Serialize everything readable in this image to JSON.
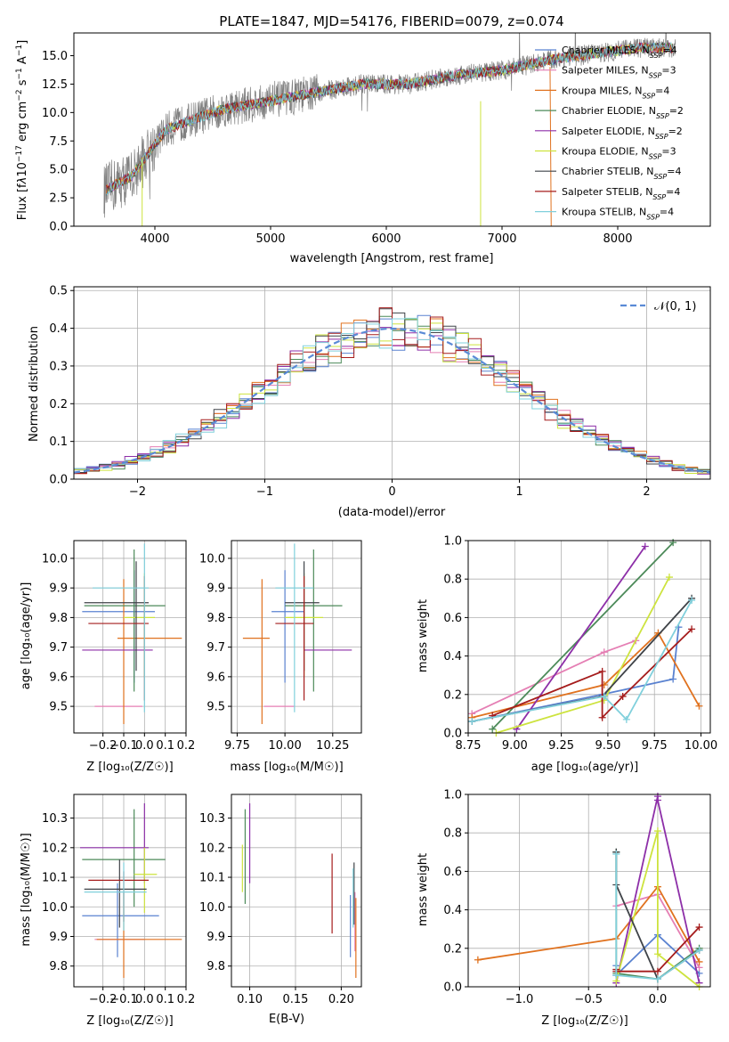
{
  "chart_data": [
    {
      "type": "line",
      "title": "PLATE=1847, MJD=54176, FIBERID=0079, z=0.074",
      "xlabel": "wavelength [Angstrom, rest frame]",
      "ylabel": "Flux [f_λ10^{-17} erg cm^{-2} s^{-1} A^{-1}]",
      "xlim": [
        3300,
        8800
      ],
      "ylim": [
        0,
        17
      ],
      "xticks": [
        4000,
        5000,
        6000,
        7000,
        8000
      ],
      "yticks": [
        0.0,
        2.5,
        5.0,
        7.5,
        10.0,
        12.5,
        15.0
      ],
      "xtick_labels": [
        "4000",
        "5000",
        "6000",
        "7000",
        "8000"
      ],
      "ytick_labels": [
        "0.0",
        "2.5",
        "5.0",
        "7.5",
        "10.0",
        "12.5",
        "15.0"
      ],
      "grid": false,
      "legend_position": "top-right",
      "data_color": "#808080",
      "continuum": {
        "x": [
          3550,
          3650,
          3800,
          3950,
          4100,
          4300,
          4600,
          5000,
          5400,
          5800,
          6200,
          6600,
          7000,
          7400,
          7800,
          8200,
          8500
        ],
        "y": [
          3.0,
          3.6,
          4.4,
          6.5,
          8.5,
          9.3,
          10.3,
          11.0,
          11.8,
          12.5,
          12.5,
          13.3,
          13.7,
          14.6,
          15.2,
          15.7,
          15.7
        ]
      },
      "series": [
        {
          "name": "Chabrier MILES",
          "nssp": "4",
          "color": "#5a82d0"
        },
        {
          "name": "Salpeter MILES",
          "nssp": "3",
          "color": "#e57fb4"
        },
        {
          "name": "Kroupa MILES",
          "nssp": "4",
          "color": "#e0721f"
        },
        {
          "name": "Chabrier ELODIE",
          "nssp": "2",
          "color": "#4c8a59"
        },
        {
          "name": "Salpeter ELODIE",
          "nssp": "2",
          "color": "#8d2fa8"
        },
        {
          "name": "Kroupa ELODIE",
          "nssp": "3",
          "color": "#cde33e"
        },
        {
          "name": "Chabrier STELIB",
          "nssp": "4",
          "color": "#3f4348"
        },
        {
          "name": "Salpeter STELIB",
          "nssp": "4",
          "color": "#a51c1c"
        },
        {
          "name": "Kroupa STELIB",
          "nssp": "4",
          "color": "#80d0dc"
        }
      ]
    },
    {
      "type": "line",
      "xlabel": "(data-model)/error",
      "ylabel": "Normed distribution",
      "xlim": [
        -2.5,
        2.5
      ],
      "ylim": [
        0,
        0.51
      ],
      "xticks": [
        -2,
        -1,
        0,
        1,
        2
      ],
      "yticks": [
        0.0,
        0.1,
        0.2,
        0.3,
        0.4,
        0.5
      ],
      "xtick_labels": [
        "−2",
        "−1",
        "0",
        "1",
        "2"
      ],
      "ytick_labels": [
        "0.0",
        "0.1",
        "0.2",
        "0.3",
        "0.4",
        "0.5"
      ],
      "grid": true,
      "legend": "𝒩(0, 1)",
      "legend_position": "top-right",
      "normal_color": "#5a8ad6",
      "bin_width": 0.1
    },
    {
      "type": "scatter",
      "xlabel": "Z [log₁₀(Z/Z☉)]",
      "ylabel": "age  [log₁₀(age/yr)]",
      "xlim": [
        -0.34,
        0.2
      ],
      "ylim": [
        9.41,
        10.06
      ],
      "xticks": [
        -0.2,
        -0.1,
        0.0,
        0.1,
        0.2
      ],
      "yticks": [
        9.5,
        9.6,
        9.7,
        9.8,
        9.9,
        10.0
      ],
      "xtick_labels": [
        "−0.2",
        "−0.1",
        "0.0",
        "0.1",
        "0.2"
      ],
      "ytick_labels": [
        "9.5",
        "9.6",
        "9.7",
        "9.8",
        "9.9",
        "10.0"
      ],
      "grid": true,
      "crosses": [
        {
          "s": 0,
          "x": -0.05,
          "y": 9.82,
          "xlo": -0.3,
          "xhi": 0.05,
          "ylo": 9.58,
          "yhi": 9.96
        },
        {
          "s": 1,
          "x": -0.12,
          "y": 9.5,
          "xlo": -0.24,
          "xhi": -0.01,
          "ylo": 9.5,
          "yhi": 9.5
        },
        {
          "s": 2,
          "x": -0.1,
          "y": 9.73,
          "xlo": -0.13,
          "xhi": 0.18,
          "ylo": 9.44,
          "yhi": 9.93
        },
        {
          "s": 3,
          "x": -0.05,
          "y": 9.84,
          "xlo": -0.29,
          "xhi": 0.1,
          "ylo": 9.55,
          "yhi": 10.03
        },
        {
          "s": 4,
          "x": -0.1,
          "y": 9.69,
          "xlo": -0.3,
          "xhi": 0.04,
          "ylo": 9.69,
          "yhi": 9.69
        },
        {
          "s": 5,
          "x": 0.0,
          "y": 9.8,
          "xlo": -0.1,
          "xhi": 0.05,
          "ylo": 9.6,
          "yhi": 9.95
        },
        {
          "s": 6,
          "x": -0.04,
          "y": 9.85,
          "xlo": -0.29,
          "xhi": 0.02,
          "ylo": 9.62,
          "yhi": 9.99
        },
        {
          "s": 7,
          "x": 0.0,
          "y": 9.78,
          "xlo": -0.27,
          "xhi": 0.02,
          "ylo": 9.52,
          "yhi": 9.94
        },
        {
          "s": 8,
          "x": 0.0,
          "y": 9.9,
          "xlo": -0.25,
          "xhi": 0.02,
          "ylo": 9.48,
          "yhi": 10.05
        }
      ]
    },
    {
      "type": "scatter",
      "xlabel": "mass [log₁₀(M/M☉)]",
      "xlim": [
        9.72,
        10.4
      ],
      "ylim": [
        9.41,
        10.06
      ],
      "xticks": [
        9.75,
        10.0,
        10.25
      ],
      "yticks": [
        9.5,
        9.6,
        9.7,
        9.8,
        9.9,
        10.0
      ],
      "xtick_labels": [
        "9.75",
        "10.00",
        "10.25"
      ],
      "ytick_labels": [
        "9.5",
        "9.6",
        "9.7",
        "9.8",
        "9.9",
        "10.0"
      ],
      "grid": true,
      "crosses": [
        {
          "s": 0,
          "x": 10.0,
          "y": 9.82,
          "xlo": 9.93,
          "xhi": 10.1,
          "ylo": 9.58,
          "yhi": 9.96
        },
        {
          "s": 1,
          "x": 9.95,
          "y": 9.5,
          "xlo": 9.89,
          "xhi": 10.05,
          "ylo": 9.5,
          "yhi": 9.5
        },
        {
          "s": 2,
          "x": 9.88,
          "y": 9.73,
          "xlo": 9.78,
          "xhi": 9.92,
          "ylo": 9.44,
          "yhi": 9.93
        },
        {
          "s": 3,
          "x": 10.15,
          "y": 9.84,
          "xlo": 10.0,
          "xhi": 10.3,
          "ylo": 9.55,
          "yhi": 10.03
        },
        {
          "s": 4,
          "x": 10.2,
          "y": 9.69,
          "xlo": 10.1,
          "xhi": 10.35,
          "ylo": 9.69,
          "yhi": 9.69
        },
        {
          "s": 5,
          "x": 10.1,
          "y": 9.8,
          "xlo": 10.0,
          "xhi": 10.2,
          "ylo": 9.6,
          "yhi": 9.95
        },
        {
          "s": 6,
          "x": 10.1,
          "y": 9.85,
          "xlo": 10.0,
          "xhi": 10.18,
          "ylo": 9.62,
          "yhi": 9.99
        },
        {
          "s": 7,
          "x": 10.1,
          "y": 9.78,
          "xlo": 9.95,
          "xhi": 10.15,
          "ylo": 9.52,
          "yhi": 9.94
        },
        {
          "s": 8,
          "x": 10.05,
          "y": 9.9,
          "xlo": 9.95,
          "xhi": 10.15,
          "ylo": 9.48,
          "yhi": 10.05
        }
      ]
    },
    {
      "type": "line",
      "xlabel": "age  [log₁₀(age/yr)]",
      "ylabel": "mass weight",
      "xlim": [
        8.75,
        10.05
      ],
      "ylim": [
        0,
        1
      ],
      "xticks": [
        8.75,
        9.0,
        9.25,
        9.5,
        9.75,
        10.0
      ],
      "yticks": [
        0.0,
        0.2,
        0.4,
        0.6,
        0.8,
        1.0
      ],
      "xtick_labels": [
        "8.75",
        "9.00",
        "9.25",
        "9.50",
        "9.75",
        "10.00"
      ],
      "ytick_labels": [
        "0.0",
        "0.2",
        "0.4",
        "0.6",
        "0.8",
        "1.0"
      ],
      "grid": true,
      "lines": [
        {
          "s": 0,
          "x": [
            8.77,
            9.47,
            9.85,
            9.88
          ],
          "y": [
            0.06,
            0.2,
            0.28,
            0.55
          ]
        },
        {
          "s": 1,
          "x": [
            8.77,
            9.48,
            9.65
          ],
          "y": [
            0.1,
            0.42,
            0.48
          ]
        },
        {
          "s": 2,
          "x": [
            8.77,
            9.48,
            9.77,
            9.99
          ],
          "y": [
            0.08,
            0.25,
            0.52,
            0.14
          ]
        },
        {
          "s": 3,
          "x": [
            8.88,
            9.85
          ],
          "y": [
            0.02,
            0.99
          ]
        },
        {
          "s": 4,
          "x": [
            9.01,
            9.7
          ],
          "y": [
            0.02,
            0.97
          ]
        },
        {
          "s": 5,
          "x": [
            8.9,
            9.48,
            9.83
          ],
          "y": [
            0.0,
            0.17,
            0.81
          ]
        },
        {
          "s": 6,
          "x": [
            8.77,
            9.47,
            9.95
          ],
          "y": [
            0.06,
            0.19,
            0.7
          ]
        },
        {
          "s": 7,
          "x": [
            8.88,
            9.47,
            9.47,
            9.58,
            9.95
          ],
          "y": [
            0.09,
            0.32,
            0.08,
            0.19,
            0.54
          ]
        },
        {
          "s": 8,
          "x": [
            8.77,
            9.48,
            9.6,
            9.95
          ],
          "y": [
            0.06,
            0.19,
            0.07,
            0.69
          ]
        }
      ]
    },
    {
      "type": "scatter",
      "xlabel": "Z [log₁₀(Z/Z☉)]",
      "ylabel": "mass [log₁₀(M/M☉)]",
      "xlim": [
        -0.34,
        0.2
      ],
      "ylim": [
        9.73,
        10.38
      ],
      "xticks": [
        -0.2,
        -0.1,
        0.0,
        0.1,
        0.2
      ],
      "yticks": [
        9.8,
        9.9,
        10.0,
        10.1,
        10.2,
        10.3
      ],
      "xtick_labels": [
        "−0.2",
        "−0.1",
        "0.0",
        "0.1",
        "0.2"
      ],
      "ytick_labels": [
        "9.8",
        "9.9",
        "10.0",
        "10.1",
        "10.2",
        "10.3"
      ],
      "grid": true,
      "crosses": [
        {
          "s": 0,
          "x": -0.13,
          "y": 9.97,
          "xlo": -0.3,
          "xhi": 0.07,
          "ylo": 9.83,
          "yhi": 10.08
        },
        {
          "s": 1,
          "x": -0.05,
          "y": 9.89,
          "xlo": -0.24,
          "xhi": 0.0,
          "ylo": 9.89,
          "yhi": 9.89
        },
        {
          "s": 2,
          "x": -0.1,
          "y": 9.89,
          "xlo": -0.23,
          "xhi": 0.18,
          "ylo": 9.76,
          "yhi": 10.05
        },
        {
          "s": 3,
          "x": -0.05,
          "y": 10.16,
          "xlo": -0.3,
          "xhi": 0.1,
          "ylo": 10.0,
          "yhi": 10.33
        },
        {
          "s": 4,
          "x": 0.0,
          "y": 10.2,
          "xlo": -0.31,
          "xhi": 0.02,
          "ylo": 10.08,
          "yhi": 10.35
        },
        {
          "s": 5,
          "x": 0.0,
          "y": 10.11,
          "xlo": -0.05,
          "xhi": 0.06,
          "ylo": 9.98,
          "yhi": 10.2
        },
        {
          "s": 6,
          "x": -0.12,
          "y": 10.06,
          "xlo": -0.29,
          "xhi": 0.01,
          "ylo": 9.93,
          "yhi": 10.16
        },
        {
          "s": 7,
          "x": -0.1,
          "y": 10.09,
          "xlo": -0.27,
          "xhi": 0.02,
          "ylo": 9.95,
          "yhi": 10.12
        },
        {
          "s": 8,
          "x": -0.1,
          "y": 10.05,
          "xlo": -0.29,
          "xhi": 0.01,
          "ylo": 9.92,
          "yhi": 10.15
        }
      ]
    },
    {
      "type": "scatter",
      "xlabel": "E(B-V)",
      "xlim": [
        0.08,
        0.222
      ],
      "ylim": [
        9.73,
        10.38
      ],
      "xticks": [
        0.1,
        0.15,
        0.2
      ],
      "yticks": [
        9.8,
        9.9,
        10.0,
        10.1,
        10.2,
        10.3
      ],
      "xtick_labels": [
        "0.10",
        "0.15",
        "0.20"
      ],
      "ytick_labels": [
        "9.8",
        "9.9",
        "10.0",
        "10.1",
        "10.2",
        "10.3"
      ],
      "grid": true,
      "crosses": [
        {
          "s": 0,
          "x": 0.21,
          "y": 9.97,
          "ylo": 9.83,
          "yhi": 10.04
        },
        {
          "s": 1,
          "x": 0.215,
          "y": 9.95,
          "ylo": 9.85,
          "yhi": 10.05
        },
        {
          "s": 2,
          "x": 0.216,
          "y": 9.9,
          "ylo": 9.76,
          "yhi": 10.03
        },
        {
          "s": 3,
          "x": 0.095,
          "y": 10.17,
          "ylo": 10.01,
          "yhi": 10.33
        },
        {
          "s": 4,
          "x": 0.1,
          "y": 10.21,
          "ylo": 10.08,
          "yhi": 10.35
        },
        {
          "s": 5,
          "x": 0.092,
          "y": 10.13,
          "ylo": 10.05,
          "yhi": 10.21
        },
        {
          "s": 6,
          "x": 0.214,
          "y": 10.05,
          "ylo": 9.94,
          "yhi": 10.15
        },
        {
          "s": 7,
          "x": 0.19,
          "y": 10.05,
          "ylo": 9.91,
          "yhi": 10.18
        },
        {
          "s": 8,
          "x": 0.213,
          "y": 10.03,
          "ylo": 9.93,
          "yhi": 10.13
        }
      ]
    },
    {
      "type": "line",
      "xlabel": "Z [log₁₀(Z/Z☉)]",
      "ylabel": "mass weight",
      "xlim": [
        -1.37,
        0.38
      ],
      "ylim": [
        0,
        1
      ],
      "xticks": [
        -1.0,
        -0.5,
        0.0
      ],
      "yticks": [
        0.0,
        0.2,
        0.4,
        0.6,
        0.8,
        1.0
      ],
      "xtick_labels": [
        "−1.0",
        "−0.5",
        "0.0"
      ],
      "ytick_labels": [
        "0.0",
        "0.2",
        "0.4",
        "0.6",
        "0.8",
        "1.0"
      ],
      "grid": true,
      "lines": [
        {
          "s": 0,
          "x": [
            -0.3,
            -0.3,
            0.0,
            0.3
          ],
          "y": [
            0.11,
            0.06,
            0.27,
            0.07
          ]
        },
        {
          "s": 1,
          "x": [
            -0.3,
            0.0,
            0.3
          ],
          "y": [
            0.42,
            0.48,
            0.1
          ]
        },
        {
          "s": 2,
          "x": [
            -1.3,
            -0.3,
            0.0,
            0.3
          ],
          "y": [
            0.14,
            0.25,
            0.52,
            0.13
          ]
        },
        {
          "s": 3,
          "x": [
            -0.3,
            -0.3,
            0.0,
            0.3
          ],
          "y": [
            0.7,
            0.07,
            0.04,
            0.2
          ]
        },
        {
          "s": 4,
          "x": [
            -0.3,
            0.0,
            0.0,
            0.3
          ],
          "y": [
            0.02,
            0.99,
            0.97,
            0.02
          ]
        },
        {
          "s": 5,
          "x": [
            -0.3,
            0.0,
            0.0,
            0.3
          ],
          "y": [
            0.03,
            0.81,
            0.17,
            0.0
          ]
        },
        {
          "s": 6,
          "x": [
            -0.3,
            -0.3,
            0.0,
            0.3
          ],
          "y": [
            0.7,
            0.53,
            0.04,
            0.19
          ]
        },
        {
          "s": 7,
          "x": [
            -0.3,
            -0.3,
            0.0,
            0.3
          ],
          "y": [
            0.09,
            0.08,
            0.08,
            0.31
          ]
        },
        {
          "s": 8,
          "x": [
            -0.3,
            -0.3,
            0.0,
            0.3
          ],
          "y": [
            0.69,
            0.06,
            0.04,
            0.19
          ]
        }
      ]
    }
  ]
}
